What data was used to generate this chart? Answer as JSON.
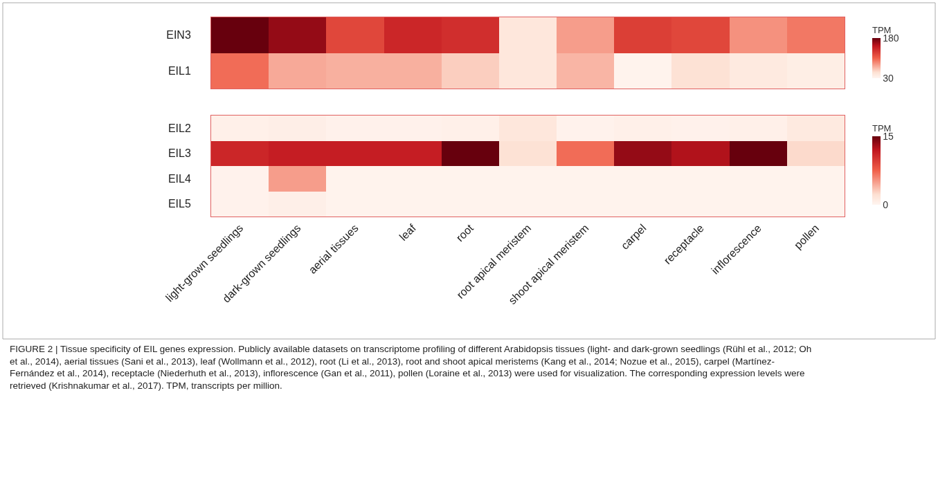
{
  "chart_data": [
    {
      "type": "heatmap",
      "categories": [
        null,
        null,
        null,
        null,
        null,
        null,
        null,
        null,
        null,
        null,
        null
      ],
      "y_categories": [
        "EIN3",
        "EIL1"
      ],
      "cells": [
        [
          180,
          165,
          120,
          140,
          135,
          45,
          80,
          125,
          120,
          85,
          95
        ],
        [
          100,
          75,
          72,
          72,
          60,
          45,
          70,
          32,
          50,
          42,
          38
        ]
      ],
      "clim": [
        30,
        180
      ],
      "cticks": [
        30,
        180
      ],
      "clabel": "TPM"
    },
    {
      "type": "heatmap",
      "categories": [
        "light-grown seedlings",
        "dark-grown seedlings",
        "aerial tissues",
        "leaf",
        "root",
        "root apical meristem",
        "shoot apical meristem",
        "carpel",
        "receptacle",
        "inflorescence",
        "pollen"
      ],
      "y_categories": [
        "EIL2",
        "EIL3",
        "EIL4",
        "EIL5"
      ],
      "cells": [
        [
          0.5,
          0.7,
          0.4,
          0.4,
          0.5,
          1.5,
          0.3,
          0.5,
          0.4,
          0.5,
          1.2
        ],
        [
          11,
          11.5,
          11.5,
          11.5,
          15,
          2,
          7,
          13.5,
          12.5,
          15,
          2.5
        ],
        [
          0.3,
          5,
          0.2,
          0.2,
          0.2,
          0.2,
          0.2,
          0.2,
          0.2,
          0.2,
          0.2
        ],
        [
          0.3,
          0.6,
          0.2,
          0.2,
          0.2,
          0.2,
          0.2,
          0.2,
          0.2,
          0.2,
          0.2
        ]
      ],
      "clim": [
        0,
        15
      ],
      "cticks": [
        0,
        15
      ],
      "clabel": "TPM",
      "annotations": [
        "FIGURE 2 | Tissue specificity of EIL genes expression. Publicly available datasets on transcriptome profiling of different Arabidopsis tissues (light- and dark-grown seedlings (Rühl et al., 2012; Oh et al., 2014), aerial tissues (Sani et al., 2013), leaf (Wollmann et al., 2012), root (Li et al., 2013), root and shoot apical meristems (Kang et al., 2014; Nozue et al., 2015), carpel (Martínez-Fernández et al., 2014), receptacle (Niederhuth et al., 2013), inflorescence (Gan et al., 2011), pollen (Loraine et al., 2013) were used for visualization. The corresponding expression levels were retrieved (Krishnakumar et al., 2017). TPM, transcripts per million."
      ]
    }
  ]
}
